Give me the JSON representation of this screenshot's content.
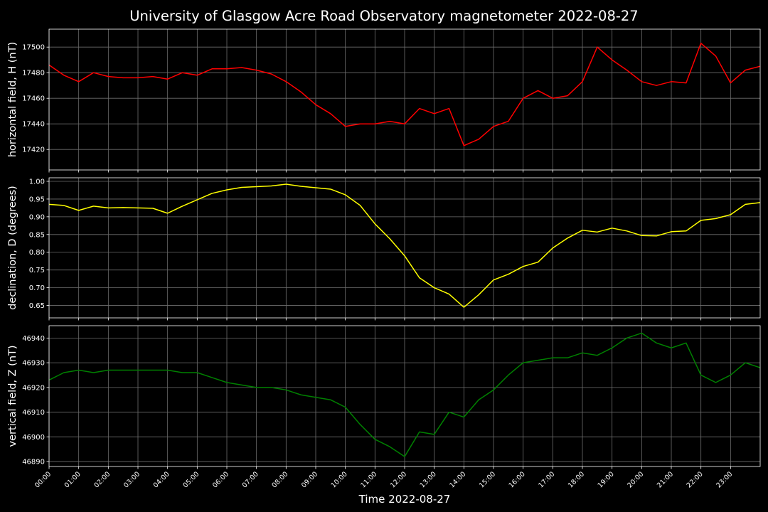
{
  "chart_data": {
    "type": "line",
    "title": "University of Glasgow Acre Road Observatory magnetometer 2022-08-27",
    "xlabel": "Time 2022-08-27",
    "x_unit": "hours since 00:00",
    "xlim": [
      0,
      24
    ],
    "x_ticks": [
      "00:00",
      "01:00",
      "02:00",
      "03:00",
      "04:00",
      "05:00",
      "06:00",
      "07:00",
      "08:00",
      "09:00",
      "10:00",
      "11:00",
      "12:00",
      "13:00",
      "14:00",
      "15:00",
      "16:00",
      "17:00",
      "18:00",
      "19:00",
      "20:00",
      "21:00",
      "22:00",
      "23:00"
    ],
    "x": [
      0,
      0.5,
      1,
      1.5,
      2,
      2.5,
      3,
      3.5,
      4,
      4.5,
      5,
      5.5,
      6,
      6.5,
      7,
      7.5,
      8,
      8.5,
      9,
      9.5,
      10,
      10.5,
      11,
      11.5,
      12,
      12.5,
      13,
      13.5,
      14,
      14.5,
      15,
      15.5,
      16,
      16.5,
      17,
      17.5,
      18,
      18.5,
      19,
      19.5,
      20,
      20.5,
      21,
      21.5,
      22,
      22.5,
      23,
      23.5,
      24
    ],
    "grid": true,
    "panels": [
      {
        "ylabel": "horizontal field, H (nT)",
        "color": "#ff0000",
        "ylim": [
          17404,
          17514
        ],
        "y_ticks": [
          17420,
          17440,
          17460,
          17480,
          17500
        ],
        "series": [
          {
            "values": [
              17486,
              17478,
              17473,
              17480,
              17477,
              17476,
              17476,
              17477,
              17475,
              17480,
              17478,
              17483,
              17483,
              17484,
              17482,
              17479,
              17473,
              17465,
              17455,
              17448,
              17438,
              17440,
              17440,
              17442,
              17440,
              17452,
              17448,
              17452,
              17423,
              17428,
              17438,
              17442,
              17460,
              17466,
              17460,
              17462,
              17473,
              17500,
              17490,
              17482,
              17473,
              17470,
              17473,
              17472,
              17503,
              17493,
              17472,
              17482,
              17485
            ]
          }
        ]
      },
      {
        "ylabel": "declination, D (degrees)",
        "color": "#ffff00",
        "ylim": [
          0.615,
          1.01
        ],
        "y_ticks": [
          0.65,
          0.7,
          0.75,
          0.8,
          0.85,
          0.9,
          0.95,
          1.0
        ],
        "series": [
          {
            "values": [
              0.935,
              0.932,
              0.918,
              0.93,
              0.925,
              0.926,
              0.925,
              0.924,
              0.91,
              0.93,
              0.948,
              0.966,
              0.976,
              0.983,
              0.985,
              0.987,
              0.992,
              0.986,
              0.982,
              0.978,
              0.962,
              0.932,
              0.88,
              0.838,
              0.79,
              0.728,
              0.7,
              0.682,
              0.645,
              0.68,
              0.722,
              0.738,
              0.76,
              0.772,
              0.812,
              0.84,
              0.862,
              0.857,
              0.868,
              0.86,
              0.847,
              0.846,
              0.858,
              0.86,
              0.89,
              0.895,
              0.906,
              0.935,
              0.94
            ]
          }
        ]
      },
      {
        "ylabel": "vertical field, Z (nT)",
        "color": "#008000",
        "ylim": [
          46888,
          46945
        ],
        "y_ticks": [
          46890,
          46900,
          46910,
          46920,
          46930,
          46940
        ],
        "series": [
          {
            "values": [
              46923,
              46926,
              46927,
              46926,
              46927,
              46927,
              46927,
              46927,
              46927,
              46926,
              46926,
              46924,
              46922,
              46921,
              46920,
              46920,
              46919,
              46917,
              46916,
              46915,
              46912,
              46905,
              46899,
              46896,
              46892,
              46902,
              46901,
              46910,
              46908,
              46915,
              46919,
              46925,
              46930,
              46931,
              46932,
              46932,
              46934,
              46933,
              46936,
              46940,
              46942,
              46938,
              46936,
              46938,
              46925,
              46922,
              46925,
              46930,
              46928
            ]
          }
        ]
      }
    ]
  }
}
